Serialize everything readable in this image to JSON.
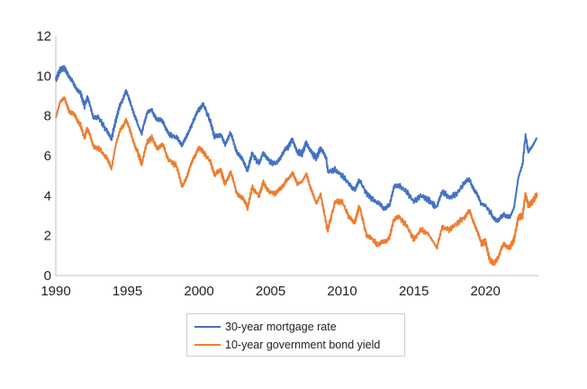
{
  "chart_data": {
    "type": "line",
    "title": "",
    "xlabel": "",
    "ylabel": "",
    "xlim": [
      1990,
      2023.7
    ],
    "ylim": [
      0,
      12
    ],
    "x_ticks": [
      1990,
      1995,
      2000,
      2005,
      2010,
      2015,
      2020
    ],
    "y_ticks": [
      0,
      2,
      4,
      6,
      8,
      10,
      12
    ],
    "grid": false,
    "legend": "bottom-center",
    "series": [
      {
        "name": "30-year mortgage rate",
        "color": "#4472C4",
        "points": [
          [
            1990.0,
            9.8
          ],
          [
            1990.3,
            10.3
          ],
          [
            1990.6,
            10.4
          ],
          [
            1990.9,
            10.0
          ],
          [
            1991.3,
            9.5
          ],
          [
            1991.7,
            9.2
          ],
          [
            1992.0,
            8.5
          ],
          [
            1992.2,
            8.9
          ],
          [
            1992.6,
            8.0
          ],
          [
            1993.0,
            7.9
          ],
          [
            1993.5,
            7.3
          ],
          [
            1993.9,
            6.9
          ],
          [
            1994.2,
            7.8
          ],
          [
            1994.5,
            8.6
          ],
          [
            1994.9,
            9.2
          ],
          [
            1995.3,
            8.5
          ],
          [
            1995.7,
            7.6
          ],
          [
            1996.0,
            7.1
          ],
          [
            1996.4,
            8.2
          ],
          [
            1996.7,
            8.3
          ],
          [
            1997.1,
            7.8
          ],
          [
            1997.5,
            7.7
          ],
          [
            1997.9,
            7.1
          ],
          [
            1998.4,
            6.9
          ],
          [
            1998.8,
            6.6
          ],
          [
            1999.2,
            7.0
          ],
          [
            1999.6,
            7.8
          ],
          [
            2000.0,
            8.3
          ],
          [
            2000.3,
            8.6
          ],
          [
            2000.8,
            7.7
          ],
          [
            2001.1,
            6.9
          ],
          [
            2001.5,
            7.1
          ],
          [
            2001.8,
            6.6
          ],
          [
            2002.2,
            7.1
          ],
          [
            2002.6,
            6.3
          ],
          [
            2003.0,
            5.8
          ],
          [
            2003.4,
            5.3
          ],
          [
            2003.7,
            6.1
          ],
          [
            2004.2,
            5.6
          ],
          [
            2004.5,
            6.2
          ],
          [
            2004.9,
            5.7
          ],
          [
            2005.4,
            5.6
          ],
          [
            2005.8,
            6.1
          ],
          [
            2006.2,
            6.4
          ],
          [
            2006.5,
            6.8
          ],
          [
            2006.9,
            6.2
          ],
          [
            2007.2,
            6.1
          ],
          [
            2007.5,
            6.7
          ],
          [
            2007.9,
            6.1
          ],
          [
            2008.2,
            5.9
          ],
          [
            2008.5,
            6.4
          ],
          [
            2008.9,
            5.8
          ],
          [
            2009.0,
            5.2
          ],
          [
            2009.5,
            5.3
          ],
          [
            2010.0,
            5.0
          ],
          [
            2010.5,
            4.6
          ],
          [
            2010.9,
            4.3
          ],
          [
            2011.2,
            4.8
          ],
          [
            2011.7,
            4.1
          ],
          [
            2012.0,
            3.9
          ],
          [
            2012.5,
            3.6
          ],
          [
            2012.9,
            3.4
          ],
          [
            2013.3,
            3.5
          ],
          [
            2013.6,
            4.4
          ],
          [
            2014.0,
            4.5
          ],
          [
            2014.5,
            4.2
          ],
          [
            2015.0,
            3.7
          ],
          [
            2015.5,
            4.0
          ],
          [
            2016.0,
            3.8
          ],
          [
            2016.6,
            3.4
          ],
          [
            2017.0,
            4.2
          ],
          [
            2017.5,
            3.9
          ],
          [
            2018.0,
            4.1
          ],
          [
            2018.5,
            4.6
          ],
          [
            2018.9,
            4.8
          ],
          [
            2019.3,
            4.2
          ],
          [
            2019.7,
            3.6
          ],
          [
            2020.0,
            3.5
          ],
          [
            2020.5,
            3.0
          ],
          [
            2020.9,
            2.7
          ],
          [
            2021.3,
            3.1
          ],
          [
            2021.7,
            2.9
          ],
          [
            2022.0,
            3.4
          ],
          [
            2022.3,
            4.9
          ],
          [
            2022.6,
            5.6
          ],
          [
            2022.8,
            7.0
          ],
          [
            2023.0,
            6.2
          ],
          [
            2023.3,
            6.5
          ],
          [
            2023.6,
            6.9
          ]
        ]
      },
      {
        "name": "10-year government bond yield",
        "color": "#ED7D31",
        "points": [
          [
            1990.0,
            7.9
          ],
          [
            1990.3,
            8.7
          ],
          [
            1990.6,
            8.9
          ],
          [
            1990.9,
            8.3
          ],
          [
            1991.3,
            8.0
          ],
          [
            1991.7,
            7.6
          ],
          [
            1992.0,
            6.9
          ],
          [
            1992.2,
            7.4
          ],
          [
            1992.6,
            6.5
          ],
          [
            1993.0,
            6.4
          ],
          [
            1993.5,
            5.9
          ],
          [
            1993.9,
            5.4
          ],
          [
            1994.2,
            6.6
          ],
          [
            1994.5,
            7.3
          ],
          [
            1994.9,
            7.8
          ],
          [
            1995.3,
            7.0
          ],
          [
            1995.7,
            6.2
          ],
          [
            1996.0,
            5.6
          ],
          [
            1996.4,
            6.7
          ],
          [
            1996.7,
            6.9
          ],
          [
            1997.1,
            6.4
          ],
          [
            1997.5,
            6.5
          ],
          [
            1997.9,
            5.8
          ],
          [
            1998.4,
            5.5
          ],
          [
            1998.8,
            4.5
          ],
          [
            1999.2,
            5.0
          ],
          [
            1999.6,
            5.9
          ],
          [
            2000.0,
            6.4
          ],
          [
            2000.3,
            6.2
          ],
          [
            2000.8,
            5.7
          ],
          [
            2001.1,
            5.0
          ],
          [
            2001.5,
            5.3
          ],
          [
            2001.8,
            4.6
          ],
          [
            2002.2,
            5.2
          ],
          [
            2002.6,
            4.2
          ],
          [
            2003.0,
            3.9
          ],
          [
            2003.4,
            3.4
          ],
          [
            2003.7,
            4.4
          ],
          [
            2004.2,
            4.0
          ],
          [
            2004.5,
            4.7
          ],
          [
            2004.9,
            4.2
          ],
          [
            2005.4,
            4.1
          ],
          [
            2005.8,
            4.5
          ],
          [
            2006.2,
            4.8
          ],
          [
            2006.5,
            5.1
          ],
          [
            2006.9,
            4.6
          ],
          [
            2007.2,
            4.7
          ],
          [
            2007.5,
            5.1
          ],
          [
            2007.9,
            4.2
          ],
          [
            2008.2,
            3.6
          ],
          [
            2008.5,
            4.1
          ],
          [
            2008.9,
            2.5
          ],
          [
            2009.0,
            2.3
          ],
          [
            2009.5,
            3.7
          ],
          [
            2010.0,
            3.7
          ],
          [
            2010.5,
            2.9
          ],
          [
            2010.9,
            2.7
          ],
          [
            2011.2,
            3.5
          ],
          [
            2011.7,
            2.0
          ],
          [
            2012.0,
            1.9
          ],
          [
            2012.5,
            1.5
          ],
          [
            2012.9,
            1.7
          ],
          [
            2013.3,
            1.9
          ],
          [
            2013.6,
            2.8
          ],
          [
            2014.0,
            2.9
          ],
          [
            2014.5,
            2.5
          ],
          [
            2015.0,
            1.8
          ],
          [
            2015.5,
            2.3
          ],
          [
            2016.0,
            2.1
          ],
          [
            2016.6,
            1.4
          ],
          [
            2017.0,
            2.4
          ],
          [
            2017.5,
            2.3
          ],
          [
            2018.0,
            2.6
          ],
          [
            2018.5,
            2.9
          ],
          [
            2018.9,
            3.2
          ],
          [
            2019.3,
            2.5
          ],
          [
            2019.7,
            1.6
          ],
          [
            2020.0,
            1.7
          ],
          [
            2020.3,
            0.8
          ],
          [
            2020.6,
            0.6
          ],
          [
            2020.9,
            0.9
          ],
          [
            2021.3,
            1.6
          ],
          [
            2021.7,
            1.4
          ],
          [
            2022.0,
            1.8
          ],
          [
            2022.3,
            2.9
          ],
          [
            2022.6,
            3.0
          ],
          [
            2022.8,
            4.1
          ],
          [
            2023.0,
            3.5
          ],
          [
            2023.3,
            3.7
          ],
          [
            2023.6,
            4.1
          ]
        ]
      }
    ]
  }
}
